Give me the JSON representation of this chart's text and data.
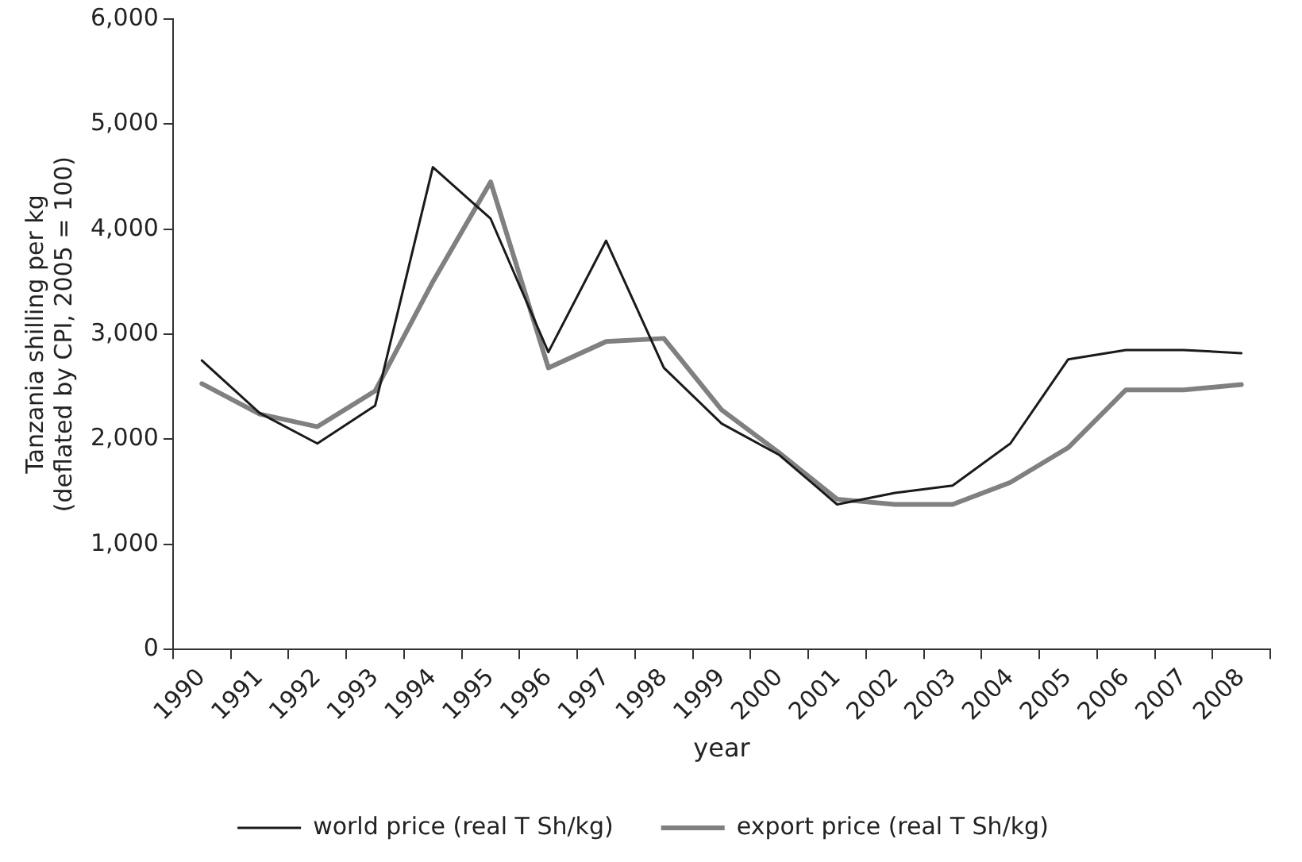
{
  "chart_data": {
    "type": "line",
    "xlabel": "year",
    "ylabel": "Tanzania shilling per kg\n(deflated by CPI, 2005 = 100)",
    "categories": [
      "1990",
      "1991",
      "1992",
      "1993",
      "1994",
      "1995",
      "1996",
      "1997",
      "1998",
      "1999",
      "2000",
      "2001",
      "2002",
      "2003",
      "2004",
      "2005",
      "2006",
      "2007",
      "2008"
    ],
    "series": [
      {
        "name": "world price (real T Sh/kg)",
        "color": "#1a1a1a",
        "values": [
          2750,
          2250,
          1960,
          2320,
          4590,
          4100,
          2830,
          3890,
          2680,
          2150,
          1850,
          1380,
          1490,
          1560,
          1960,
          2760,
          2850,
          2850,
          2820
        ]
      },
      {
        "name": "export price (real T Sh/kg)",
        "color": "#808080",
        "values": [
          2530,
          2240,
          2120,
          2460,
          3500,
          4450,
          2680,
          2930,
          2960,
          2280,
          1870,
          1430,
          1380,
          1380,
          1590,
          1920,
          2470,
          2470,
          2520
        ]
      }
    ],
    "ylim": [
      0,
      6000
    ],
    "yticks": [
      {
        "value": 0,
        "label": "0"
      },
      {
        "value": 1000,
        "label": "1,000"
      },
      {
        "value": 2000,
        "label": "2,000"
      },
      {
        "value": 3000,
        "label": "3,000"
      },
      {
        "value": 4000,
        "label": "4,000"
      },
      {
        "value": 5000,
        "label": "5,000"
      },
      {
        "value": 6000,
        "label": "6,000"
      }
    ],
    "grid": false,
    "legend": "bottom",
    "marker": "none",
    "line_style": "solid"
  }
}
